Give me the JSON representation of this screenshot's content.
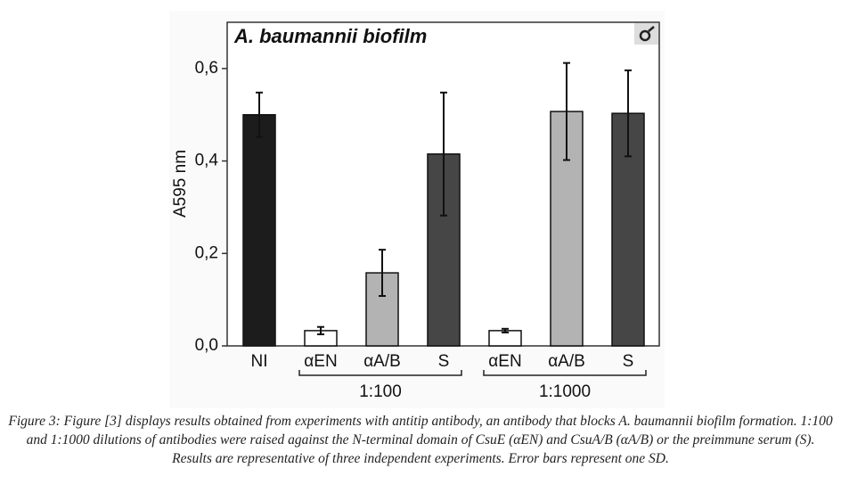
{
  "chart_data": {
    "type": "bar",
    "title": "A. baumannii biofilm",
    "ylabel": "A595 nm",
    "categories": [
      "NI",
      "αEN",
      "αA/B",
      "S",
      "αEN",
      "αA/B",
      "S"
    ],
    "values": [
      0.5,
      0.033,
      0.158,
      0.415,
      0.033,
      0.507,
      0.503
    ],
    "errors": [
      0.048,
      0.008,
      0.05,
      0.133,
      0.004,
      0.105,
      0.093
    ],
    "colors": [
      "#1c1c1c",
      "#ffffff",
      "#b3b3b3",
      "#464646",
      "#ffffff",
      "#b3b3b3",
      "#464646"
    ],
    "groups": [
      {
        "label": "1:100",
        "start": 1,
        "end": 3
      },
      {
        "label": "1:1000",
        "start": 4,
        "end": 6
      }
    ],
    "ylim": [
      0,
      0.7
    ],
    "yticks": [
      {
        "value": 0,
        "label": "0,0"
      },
      {
        "value": 0.2,
        "label": "0,2"
      },
      {
        "value": 0.4,
        "label": "0,4"
      },
      {
        "value": 0.6,
        "label": "0,6"
      }
    ]
  },
  "caption": "Figure 3: Figure [3] displays results obtained from experiments with antitip antibody, an antibody that blocks A. baumannii biofilm formation. 1:100 and 1:1000 dilutions of antibodies were raised against the N-terminal domain of CsuE (αEN) and CsuA/B (αA/B) or the preimmune serum (S). Results are representative of three independent experiments. Error bars represent one SD."
}
